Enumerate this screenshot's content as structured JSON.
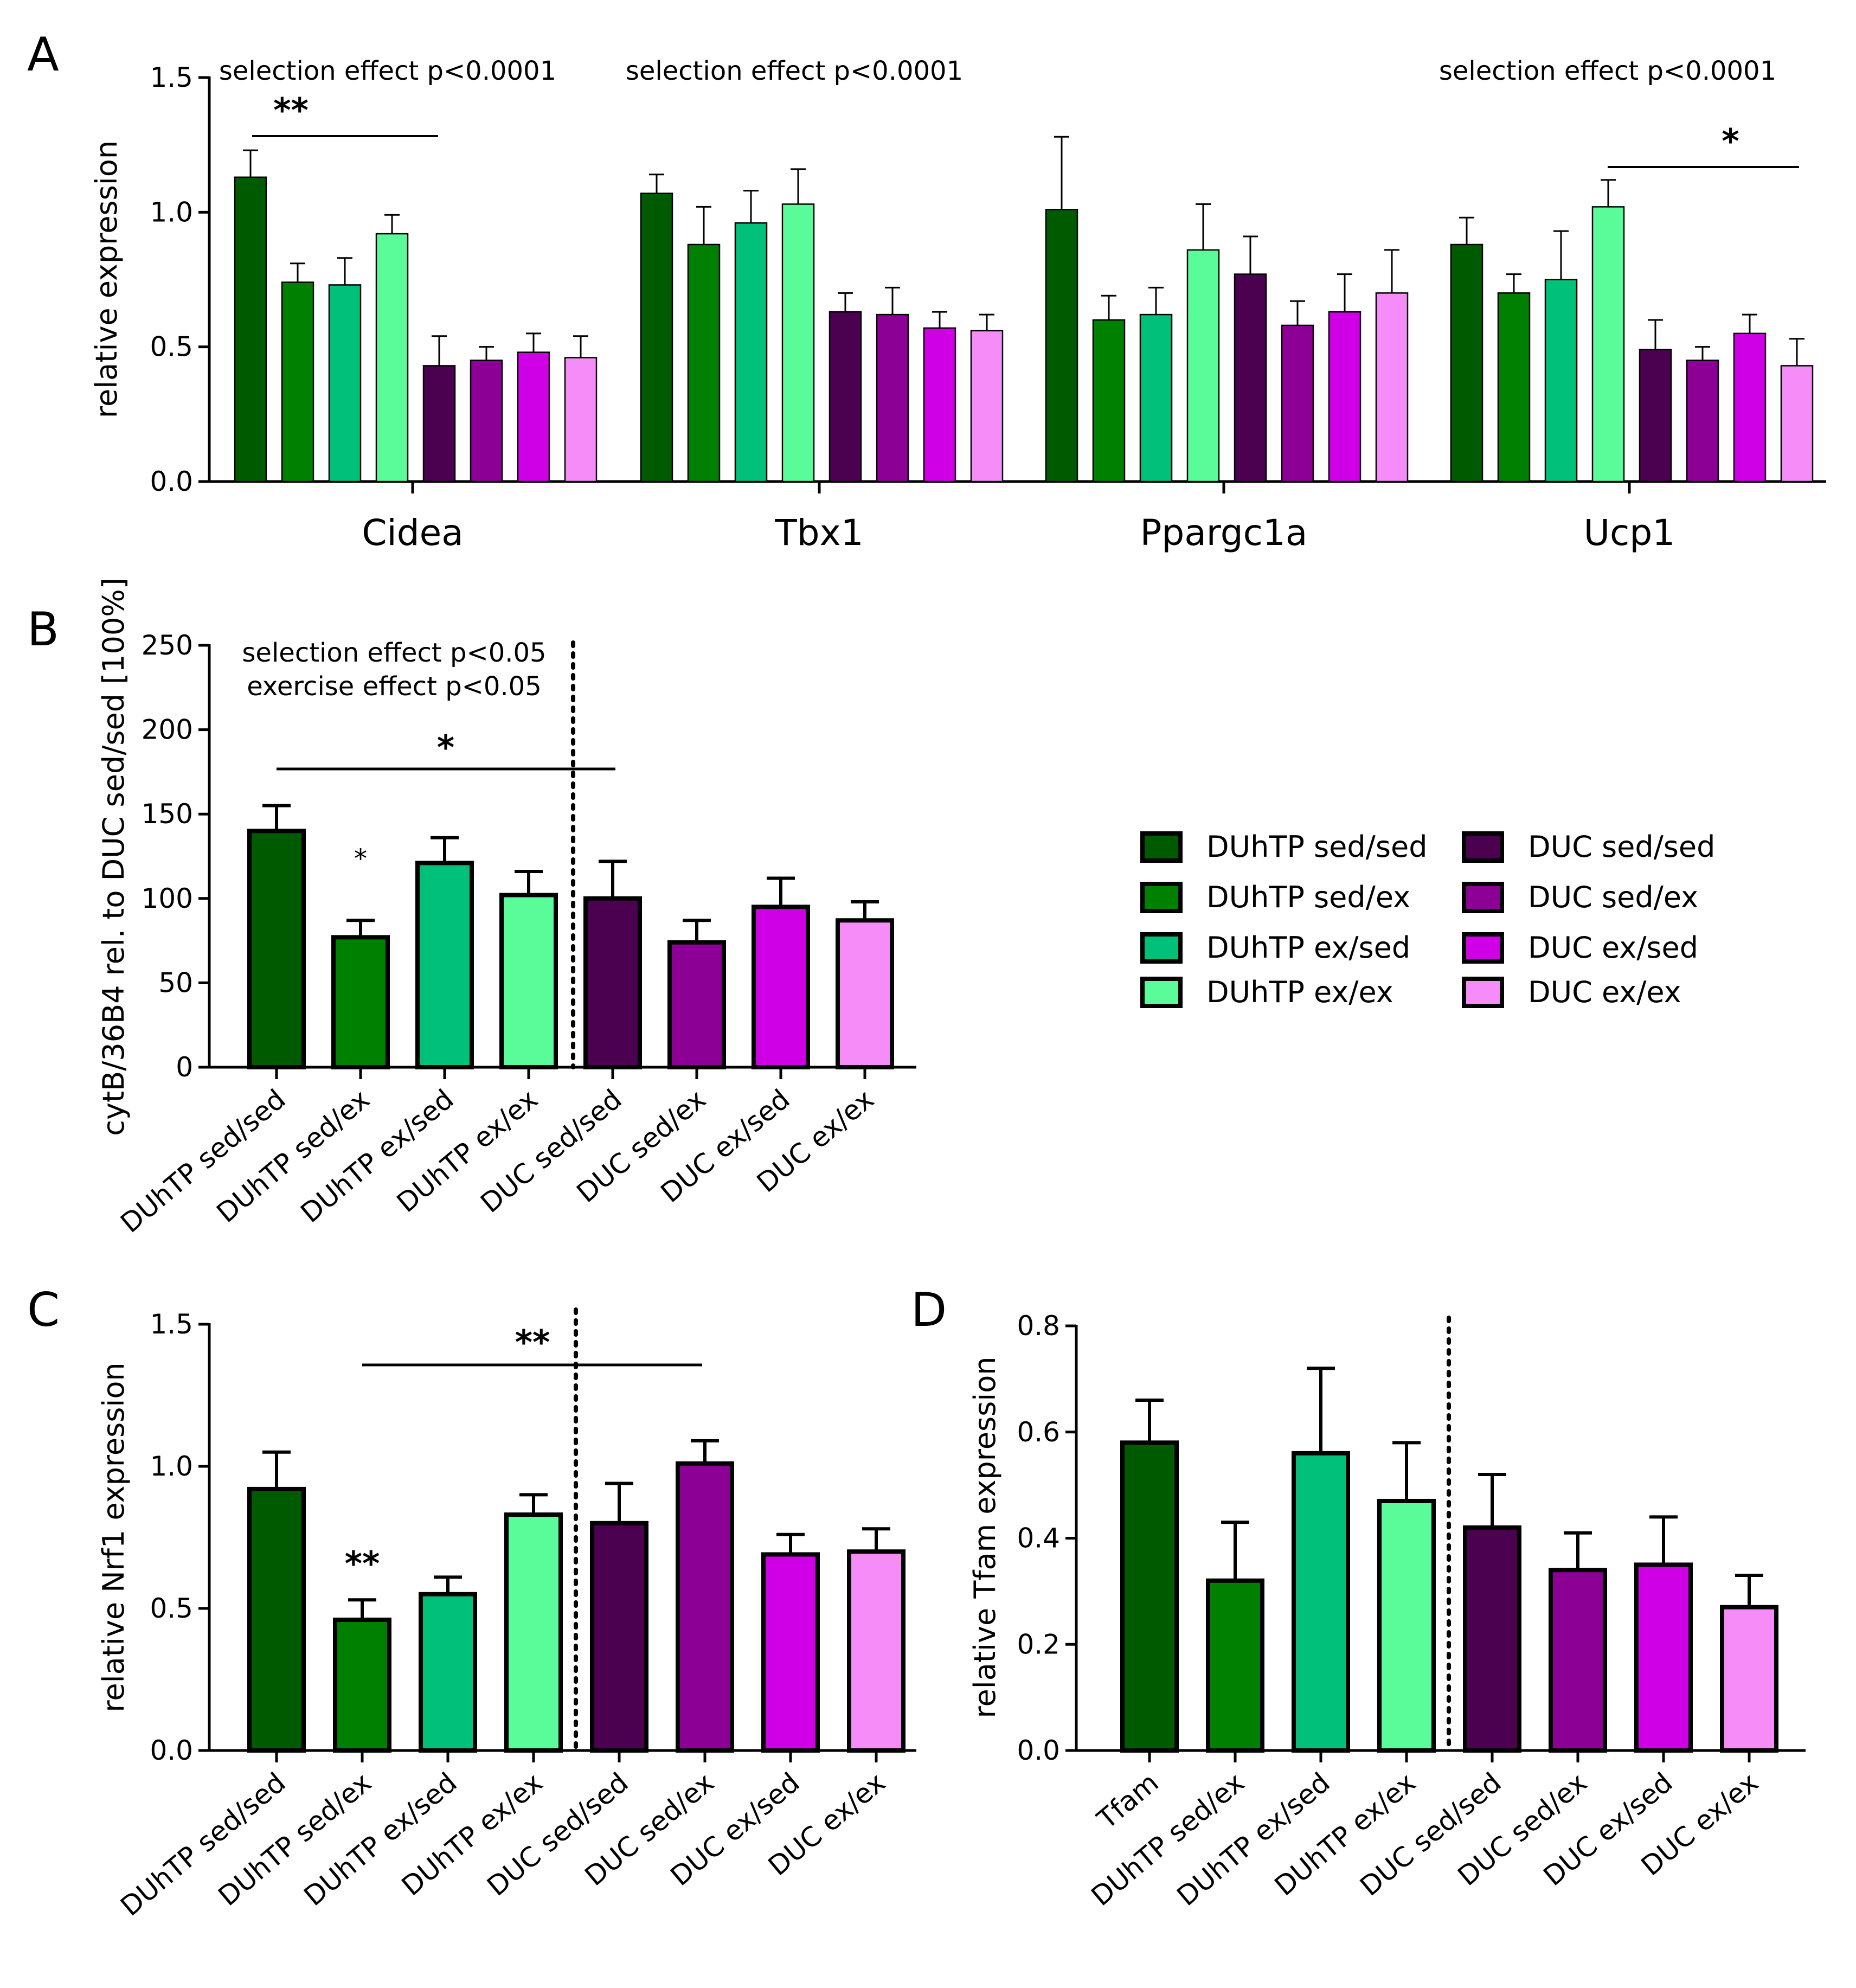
{
  "chart_data": [
    {
      "panel": "A",
      "type": "bar",
      "ylabel": "relative expression",
      "ylim": [
        0,
        1.5
      ],
      "yticks": [
        "0.0",
        "0.5",
        "1.0",
        "1.5"
      ],
      "groups": [
        "Cidea",
        "Tbx1",
        "Ppargc1a",
        "Ucp1"
      ],
      "series": [
        {
          "name": "DUhTP sed/sed",
          "values": [
            1.13,
            1.07,
            1.01,
            0.88
          ],
          "errors": [
            0.1,
            0.07,
            0.27,
            0.1
          ]
        },
        {
          "name": "DUhTP sed/ex",
          "values": [
            0.74,
            0.88,
            0.6,
            0.7
          ],
          "errors": [
            0.07,
            0.14,
            0.09,
            0.07
          ]
        },
        {
          "name": "DUhTP ex/sed",
          "values": [
            0.73,
            0.96,
            0.62,
            0.75
          ],
          "errors": [
            0.1,
            0.12,
            0.1,
            0.18
          ]
        },
        {
          "name": "DUhTP ex/ex",
          "values": [
            0.92,
            1.03,
            0.86,
            1.02
          ],
          "errors": [
            0.07,
            0.13,
            0.17,
            0.1
          ]
        },
        {
          "name": "DUC sed/sed",
          "values": [
            0.43,
            0.63,
            0.77,
            0.49
          ],
          "errors": [
            0.11,
            0.07,
            0.14,
            0.11
          ]
        },
        {
          "name": "DUC sed/ex",
          "values": [
            0.45,
            0.62,
            0.58,
            0.45
          ],
          "errors": [
            0.05,
            0.1,
            0.09,
            0.05
          ]
        },
        {
          "name": "DUC ex/sed",
          "values": [
            0.48,
            0.57,
            0.63,
            0.55
          ],
          "errors": [
            0.07,
            0.06,
            0.14,
            0.07
          ]
        },
        {
          "name": "DUC ex/ex",
          "values": [
            0.46,
            0.56,
            0.7,
            0.43
          ],
          "errors": [
            0.08,
            0.06,
            0.16,
            0.1
          ]
        }
      ],
      "annotations": [
        {
          "group": "Cidea",
          "text": "selection effect p<0.0001"
        },
        {
          "group": "Tbx1",
          "text": "selection effect p<0.0001"
        },
        {
          "group": "Ucp1",
          "text": "selection effect p<0.0001"
        }
      ],
      "significance": [
        {
          "label": "**",
          "group": "Cidea",
          "from_bar": 1,
          "to_bar": 5
        },
        {
          "label": "*",
          "group": "Ucp1",
          "from_bar": 4,
          "to_bar": 8
        }
      ]
    },
    {
      "panel": "B",
      "type": "bar",
      "ylabel": "cytB/36B4 rel. to DUC sed/sed [100%]",
      "ylim": [
        0,
        250
      ],
      "yticks": [
        "0",
        "50",
        "100",
        "150",
        "200",
        "250"
      ],
      "categories": [
        "DUhTP sed/sed",
        "DUhTP sed/ex",
        "DUhTP ex/sed",
        "DUhTP ex/ex",
        "DUC sed/sed",
        "DUC sed/ex",
        "DUC ex/sed",
        "DUC ex/ex"
      ],
      "values": [
        140,
        77,
        121,
        102,
        100,
        74,
        95,
        87
      ],
      "errors": [
        15,
        10,
        15,
        14,
        22,
        13,
        17,
        11
      ],
      "annotations": [
        "selection effect p<0.05",
        "exercise effect p<0.05"
      ],
      "bar_marks": [
        {
          "bar": 2,
          "text": "*"
        }
      ],
      "significance": [
        {
          "label": "*",
          "from_bar": 1,
          "to_bar": 5
        }
      ]
    },
    {
      "panel": "C",
      "type": "bar",
      "ylabel": "relative Nrf1 expression",
      "ylim": [
        0,
        1.5
      ],
      "yticks": [
        "0.0",
        "0.5",
        "1.0",
        "1.5"
      ],
      "categories": [
        "DUhTP sed/sed",
        "DUhTP sed/ex",
        "DUhTP ex/sed",
        "DUhTP ex/ex",
        "DUC sed/sed",
        "DUC sed/ex",
        "DUC ex/sed",
        "DUC ex/ex"
      ],
      "values": [
        0.92,
        0.46,
        0.55,
        0.83,
        0.8,
        1.01,
        0.69,
        0.7
      ],
      "errors": [
        0.13,
        0.07,
        0.06,
        0.07,
        0.14,
        0.08,
        0.07,
        0.08
      ],
      "bar_marks": [
        {
          "bar": 2,
          "text": "**"
        }
      ],
      "significance": [
        {
          "label": "**",
          "from_bar": 2,
          "to_bar": 6
        }
      ]
    },
    {
      "panel": "D",
      "type": "bar",
      "ylabel": "relative Tfam expression",
      "ylim": [
        0,
        0.8
      ],
      "yticks": [
        "0.0",
        "0.2",
        "0.4",
        "0.6",
        "0.8"
      ],
      "categories": [
        "Tfam",
        "DUhTP sed/ex",
        "DUhTP ex/sed",
        "DUhTP ex/ex",
        "DUC sed/sed",
        "DUC sed/ex",
        "DUC ex/sed",
        "DUC ex/ex"
      ],
      "values": [
        0.58,
        0.32,
        0.56,
        0.47,
        0.42,
        0.34,
        0.35,
        0.27
      ],
      "errors": [
        0.08,
        0.11,
        0.16,
        0.11,
        0.1,
        0.07,
        0.09,
        0.06
      ]
    }
  ],
  "legend": [
    {
      "name": "DUhTP sed/sed",
      "color": "#005a00"
    },
    {
      "name": "DUhTP sed/ex",
      "color": "#008000"
    },
    {
      "name": "DUhTP ex/sed",
      "color": "#00c07a"
    },
    {
      "name": "DUhTP ex/ex",
      "color": "#5afc9a"
    },
    {
      "name": "DUC sed/sed",
      "color": "#4b0050"
    },
    {
      "name": "DUC sed/ex",
      "color": "#8c0096"
    },
    {
      "name": "DUC ex/sed",
      "color": "#d000e6"
    },
    {
      "name": "DUC ex/ex",
      "color": "#f58cf8"
    }
  ]
}
